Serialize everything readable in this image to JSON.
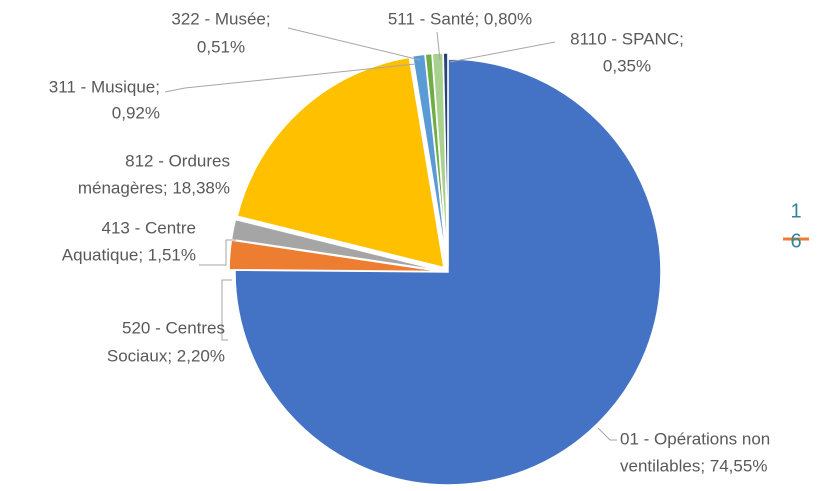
{
  "chart_data": {
    "type": "pie",
    "categories": [
      "01 - Opérations non ventilables",
      "520 - Centres Sociaux",
      "413 - Centre Aquatique",
      "812 - Ordures ménagères",
      "311 - Musique",
      "322 - Musée",
      "511 - Santé",
      "8110 - SPANC"
    ],
    "values": [
      74.55,
      2.2,
      1.51,
      18.38,
      0.92,
      0.51,
      0.8,
      0.35
    ],
    "data_labels": [
      [
        "01 - Opérations non",
        "ventilables; 74,55%"
      ],
      [
        "520 - Centres",
        "Sociaux; 2,20%"
      ],
      [
        "413 - Centre",
        "Aquatique; 1,51%"
      ],
      [
        "812 - Ordures",
        "ménagères; 18,38%"
      ],
      [
        "311 - Musique;",
        "0,92%"
      ],
      [
        "322 - Musée;",
        "0,51%"
      ],
      [
        "511 - Santé; 0,80%"
      ],
      [
        "8110 - SPANC;",
        "0,35%"
      ]
    ],
    "colors": [
      "#4472c4",
      "#ed7d31",
      "#a5a5a5",
      "#ffc000",
      "#5b9bd5",
      "#70ad47",
      "#a9d18e",
      "#264478"
    ],
    "legend_fragment": [
      "1",
      "6"
    ]
  }
}
